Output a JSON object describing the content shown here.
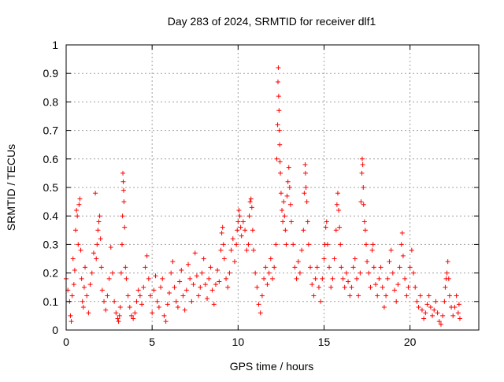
{
  "chart_data": {
    "type": "scatter",
    "title": "Day 283 of 2024, SRMTID for receiver dlf1",
    "xlabel": "GPS time / hours",
    "ylabel": "SRMTID / TECUs",
    "xlim": [
      0,
      24
    ],
    "ylim": [
      0,
      1
    ],
    "xticks": [
      0,
      5,
      10,
      15,
      20
    ],
    "yticks": [
      0,
      0.1,
      0.2,
      0.3,
      0.4,
      0.5,
      0.6,
      0.7,
      0.8,
      0.9,
      1
    ],
    "ytick_labels": [
      "0",
      "0.1",
      "0.2",
      "0.3",
      "0.4",
      "0.5",
      "0.6",
      "0.7",
      "0.8",
      "0.9",
      "1"
    ],
    "grid": true,
    "marker": "+",
    "color": "#ff0000",
    "series": [
      {
        "name": "SRMTID",
        "points": [
          [
            0.0,
            0.18
          ],
          [
            0.1,
            0.14
          ],
          [
            0.2,
            0.1
          ],
          [
            0.25,
            0.05
          ],
          [
            0.3,
            0.03
          ],
          [
            0.35,
            0.12
          ],
          [
            0.4,
            0.25
          ],
          [
            0.45,
            0.16
          ],
          [
            0.5,
            0.21
          ],
          [
            0.55,
            0.35
          ],
          [
            0.6,
            0.42
          ],
          [
            0.65,
            0.4
          ],
          [
            0.7,
            0.3
          ],
          [
            0.75,
            0.44
          ],
          [
            0.8,
            0.46
          ],
          [
            0.85,
            0.28
          ],
          [
            0.9,
            0.18
          ],
          [
            0.95,
            0.1
          ],
          [
            1.0,
            0.08
          ],
          [
            1.05,
            0.15
          ],
          [
            1.1,
            0.22
          ],
          [
            1.2,
            0.12
          ],
          [
            1.3,
            0.06
          ],
          [
            1.4,
            0.16
          ],
          [
            1.5,
            0.2
          ],
          [
            1.6,
            0.27
          ],
          [
            1.7,
            0.48
          ],
          [
            1.75,
            0.25
          ],
          [
            1.8,
            0.3
          ],
          [
            1.85,
            0.35
          ],
          [
            1.9,
            0.38
          ],
          [
            1.95,
            0.4
          ],
          [
            2.0,
            0.32
          ],
          [
            2.05,
            0.22
          ],
          [
            2.1,
            0.14
          ],
          [
            2.2,
            0.1
          ],
          [
            2.3,
            0.07
          ],
          [
            2.4,
            0.12
          ],
          [
            2.5,
            0.18
          ],
          [
            2.6,
            0.29
          ],
          [
            2.7,
            0.2
          ],
          [
            2.8,
            0.1
          ],
          [
            2.9,
            0.06
          ],
          [
            3.0,
            0.04
          ],
          [
            3.05,
            0.03
          ],
          [
            3.1,
            0.05
          ],
          [
            3.15,
            0.08
          ],
          [
            3.2,
            0.2
          ],
          [
            3.25,
            0.3
          ],
          [
            3.28,
            0.4
          ],
          [
            3.3,
            0.55
          ],
          [
            3.32,
            0.52
          ],
          [
            3.34,
            0.49
          ],
          [
            3.36,
            0.45
          ],
          [
            3.4,
            0.36
          ],
          [
            3.45,
            0.22
          ],
          [
            3.5,
            0.18
          ],
          [
            3.6,
            0.12
          ],
          [
            3.7,
            0.08
          ],
          [
            3.8,
            0.05
          ],
          [
            3.9,
            0.04
          ],
          [
            4.0,
            0.06
          ],
          [
            4.1,
            0.1
          ],
          [
            4.2,
            0.14
          ],
          [
            4.3,
            0.12
          ],
          [
            4.4,
            0.09
          ],
          [
            4.5,
            0.15
          ],
          [
            4.6,
            0.22
          ],
          [
            4.7,
            0.26
          ],
          [
            4.8,
            0.18
          ],
          [
            4.9,
            0.12
          ],
          [
            5.0,
            0.06
          ],
          [
            5.1,
            0.14
          ],
          [
            5.2,
            0.19
          ],
          [
            5.3,
            0.1
          ],
          [
            5.4,
            0.08
          ],
          [
            5.5,
            0.15
          ],
          [
            5.6,
            0.18
          ],
          [
            5.7,
            0.05
          ],
          [
            5.8,
            0.03
          ],
          [
            5.9,
            0.09
          ],
          [
            6.0,
            0.13
          ],
          [
            6.1,
            0.2
          ],
          [
            6.2,
            0.24
          ],
          [
            6.3,
            0.15
          ],
          [
            6.4,
            0.1
          ],
          [
            6.5,
            0.08
          ],
          [
            6.6,
            0.17
          ],
          [
            6.7,
            0.21
          ],
          [
            6.8,
            0.12
          ],
          [
            6.9,
            0.07
          ],
          [
            7.0,
            0.14
          ],
          [
            7.1,
            0.23
          ],
          [
            7.2,
            0.18
          ],
          [
            7.3,
            0.1
          ],
          [
            7.4,
            0.16
          ],
          [
            7.5,
            0.27
          ],
          [
            7.6,
            0.19
          ],
          [
            7.7,
            0.12
          ],
          [
            7.8,
            0.15
          ],
          [
            7.9,
            0.2
          ],
          [
            8.0,
            0.25
          ],
          [
            8.1,
            0.16
          ],
          [
            8.2,
            0.11
          ],
          [
            8.3,
            0.18
          ],
          [
            8.4,
            0.22
          ],
          [
            8.5,
            0.14
          ],
          [
            8.6,
            0.09
          ],
          [
            8.7,
            0.16
          ],
          [
            8.8,
            0.21
          ],
          [
            8.9,
            0.17
          ],
          [
            9.0,
            0.28
          ],
          [
            9.05,
            0.34
          ],
          [
            9.1,
            0.36
          ],
          [
            9.15,
            0.3
          ],
          [
            9.2,
            0.25
          ],
          [
            9.3,
            0.18
          ],
          [
            9.4,
            0.15
          ],
          [
            9.5,
            0.2
          ],
          [
            9.6,
            0.28
          ],
          [
            9.7,
            0.32
          ],
          [
            9.8,
            0.24
          ],
          [
            9.9,
            0.3
          ],
          [
            9.95,
            0.35
          ],
          [
            10.0,
            0.38
          ],
          [
            10.05,
            0.42
          ],
          [
            10.1,
            0.4
          ],
          [
            10.15,
            0.36
          ],
          [
            10.2,
            0.33
          ],
          [
            10.3,
            0.38
          ],
          [
            10.4,
            0.35
          ],
          [
            10.5,
            0.28
          ],
          [
            10.6,
            0.3
          ],
          [
            10.65,
            0.4
          ],
          [
            10.7,
            0.45
          ],
          [
            10.75,
            0.46
          ],
          [
            10.8,
            0.43
          ],
          [
            10.85,
            0.35
          ],
          [
            10.9,
            0.28
          ],
          [
            11.0,
            0.2
          ],
          [
            11.1,
            0.15
          ],
          [
            11.2,
            0.09
          ],
          [
            11.3,
            0.06
          ],
          [
            11.4,
            0.12
          ],
          [
            11.5,
            0.18
          ],
          [
            11.6,
            0.22
          ],
          [
            11.7,
            0.16
          ],
          [
            11.8,
            0.2
          ],
          [
            11.9,
            0.25
          ],
          [
            12.0,
            0.18
          ],
          [
            12.1,
            0.22
          ],
          [
            12.2,
            0.3
          ],
          [
            12.25,
            0.6
          ],
          [
            12.3,
            0.72
          ],
          [
            12.32,
            0.87
          ],
          [
            12.34,
            0.92
          ],
          [
            12.36,
            0.82
          ],
          [
            12.38,
            0.77
          ],
          [
            12.4,
            0.7
          ],
          [
            12.42,
            0.65
          ],
          [
            12.44,
            0.59
          ],
          [
            12.46,
            0.55
          ],
          [
            12.5,
            0.48
          ],
          [
            12.55,
            0.42
          ],
          [
            12.6,
            0.38
          ],
          [
            12.65,
            0.45
          ],
          [
            12.7,
            0.4
          ],
          [
            12.75,
            0.35
          ],
          [
            12.8,
            0.3
          ],
          [
            12.85,
            0.47
          ],
          [
            12.9,
            0.52
          ],
          [
            12.95,
            0.57
          ],
          [
            13.0,
            0.5
          ],
          [
            13.05,
            0.44
          ],
          [
            13.1,
            0.38
          ],
          [
            13.2,
            0.3
          ],
          [
            13.3,
            0.22
          ],
          [
            13.4,
            0.18
          ],
          [
            13.5,
            0.24
          ],
          [
            13.6,
            0.2
          ],
          [
            13.7,
            0.28
          ],
          [
            13.8,
            0.35
          ],
          [
            13.85,
            0.48
          ],
          [
            13.9,
            0.58
          ],
          [
            13.92,
            0.55
          ],
          [
            13.95,
            0.5
          ],
          [
            14.0,
            0.45
          ],
          [
            14.05,
            0.38
          ],
          [
            14.1,
            0.3
          ],
          [
            14.2,
            0.22
          ],
          [
            14.3,
            0.16
          ],
          [
            14.4,
            0.12
          ],
          [
            14.5,
            0.18
          ],
          [
            14.6,
            0.22
          ],
          [
            14.7,
            0.15
          ],
          [
            14.8,
            0.1
          ],
          [
            14.9,
            0.18
          ],
          [
            15.0,
            0.25
          ],
          [
            15.05,
            0.3
          ],
          [
            15.1,
            0.36
          ],
          [
            15.15,
            0.38
          ],
          [
            15.2,
            0.3
          ],
          [
            15.3,
            0.22
          ],
          [
            15.4,
            0.15
          ],
          [
            15.5,
            0.18
          ],
          [
            15.6,
            0.25
          ],
          [
            15.7,
            0.35
          ],
          [
            15.75,
            0.44
          ],
          [
            15.8,
            0.48
          ],
          [
            15.85,
            0.42
          ],
          [
            15.9,
            0.36
          ],
          [
            15.95,
            0.3
          ],
          [
            16.0,
            0.22
          ],
          [
            16.1,
            0.18
          ],
          [
            16.2,
            0.15
          ],
          [
            16.3,
            0.2
          ],
          [
            16.4,
            0.17
          ],
          [
            16.5,
            0.12
          ],
          [
            16.6,
            0.15
          ],
          [
            16.7,
            0.22
          ],
          [
            16.8,
            0.25
          ],
          [
            16.9,
            0.18
          ],
          [
            17.0,
            0.12
          ],
          [
            17.1,
            0.2
          ],
          [
            17.15,
            0.45
          ],
          [
            17.2,
            0.55
          ],
          [
            17.22,
            0.6
          ],
          [
            17.25,
            0.58
          ],
          [
            17.28,
            0.5
          ],
          [
            17.3,
            0.44
          ],
          [
            17.35,
            0.38
          ],
          [
            17.4,
            0.35
          ],
          [
            17.45,
            0.3
          ],
          [
            17.5,
            0.24
          ],
          [
            17.6,
            0.2
          ],
          [
            17.7,
            0.15
          ],
          [
            17.8,
            0.28
          ],
          [
            17.85,
            0.3
          ],
          [
            17.9,
            0.22
          ],
          [
            18.0,
            0.16
          ],
          [
            18.1,
            0.12
          ],
          [
            18.2,
            0.18
          ],
          [
            18.3,
            0.22
          ],
          [
            18.4,
            0.15
          ],
          [
            18.5,
            0.08
          ],
          [
            18.6,
            0.12
          ],
          [
            18.7,
            0.18
          ],
          [
            18.8,
            0.24
          ],
          [
            18.9,
            0.28
          ],
          [
            19.0,
            0.2
          ],
          [
            19.1,
            0.14
          ],
          [
            19.2,
            0.1
          ],
          [
            19.3,
            0.16
          ],
          [
            19.4,
            0.22
          ],
          [
            19.5,
            0.3
          ],
          [
            19.55,
            0.34
          ],
          [
            19.6,
            0.26
          ],
          [
            19.7,
            0.18
          ],
          [
            19.8,
            0.12
          ],
          [
            19.9,
            0.15
          ],
          [
            20.0,
            0.22
          ],
          [
            20.1,
            0.28
          ],
          [
            20.2,
            0.2
          ],
          [
            20.3,
            0.15
          ],
          [
            20.4,
            0.1
          ],
          [
            20.5,
            0.08
          ],
          [
            20.6,
            0.12
          ],
          [
            20.7,
            0.07
          ],
          [
            20.8,
            0.04
          ],
          [
            20.9,
            0.06
          ],
          [
            21.0,
            0.09
          ],
          [
            21.1,
            0.12
          ],
          [
            21.2,
            0.08
          ],
          [
            21.3,
            0.05
          ],
          [
            21.4,
            0.07
          ],
          [
            21.5,
            0.1
          ],
          [
            21.6,
            0.06
          ],
          [
            21.7,
            0.03
          ],
          [
            21.8,
            0.02
          ],
          [
            21.9,
            0.05
          ],
          [
            22.0,
            0.1
          ],
          [
            22.05,
            0.15
          ],
          [
            22.1,
            0.18
          ],
          [
            22.15,
            0.2
          ],
          [
            22.2,
            0.24
          ],
          [
            22.25,
            0.18
          ],
          [
            22.3,
            0.12
          ],
          [
            22.4,
            0.08
          ],
          [
            22.5,
            0.05
          ],
          [
            22.6,
            0.08
          ],
          [
            22.7,
            0.12
          ],
          [
            22.8,
            0.06
          ],
          [
            22.85,
            0.09
          ],
          [
            22.9,
            0.04
          ]
        ]
      }
    ]
  }
}
